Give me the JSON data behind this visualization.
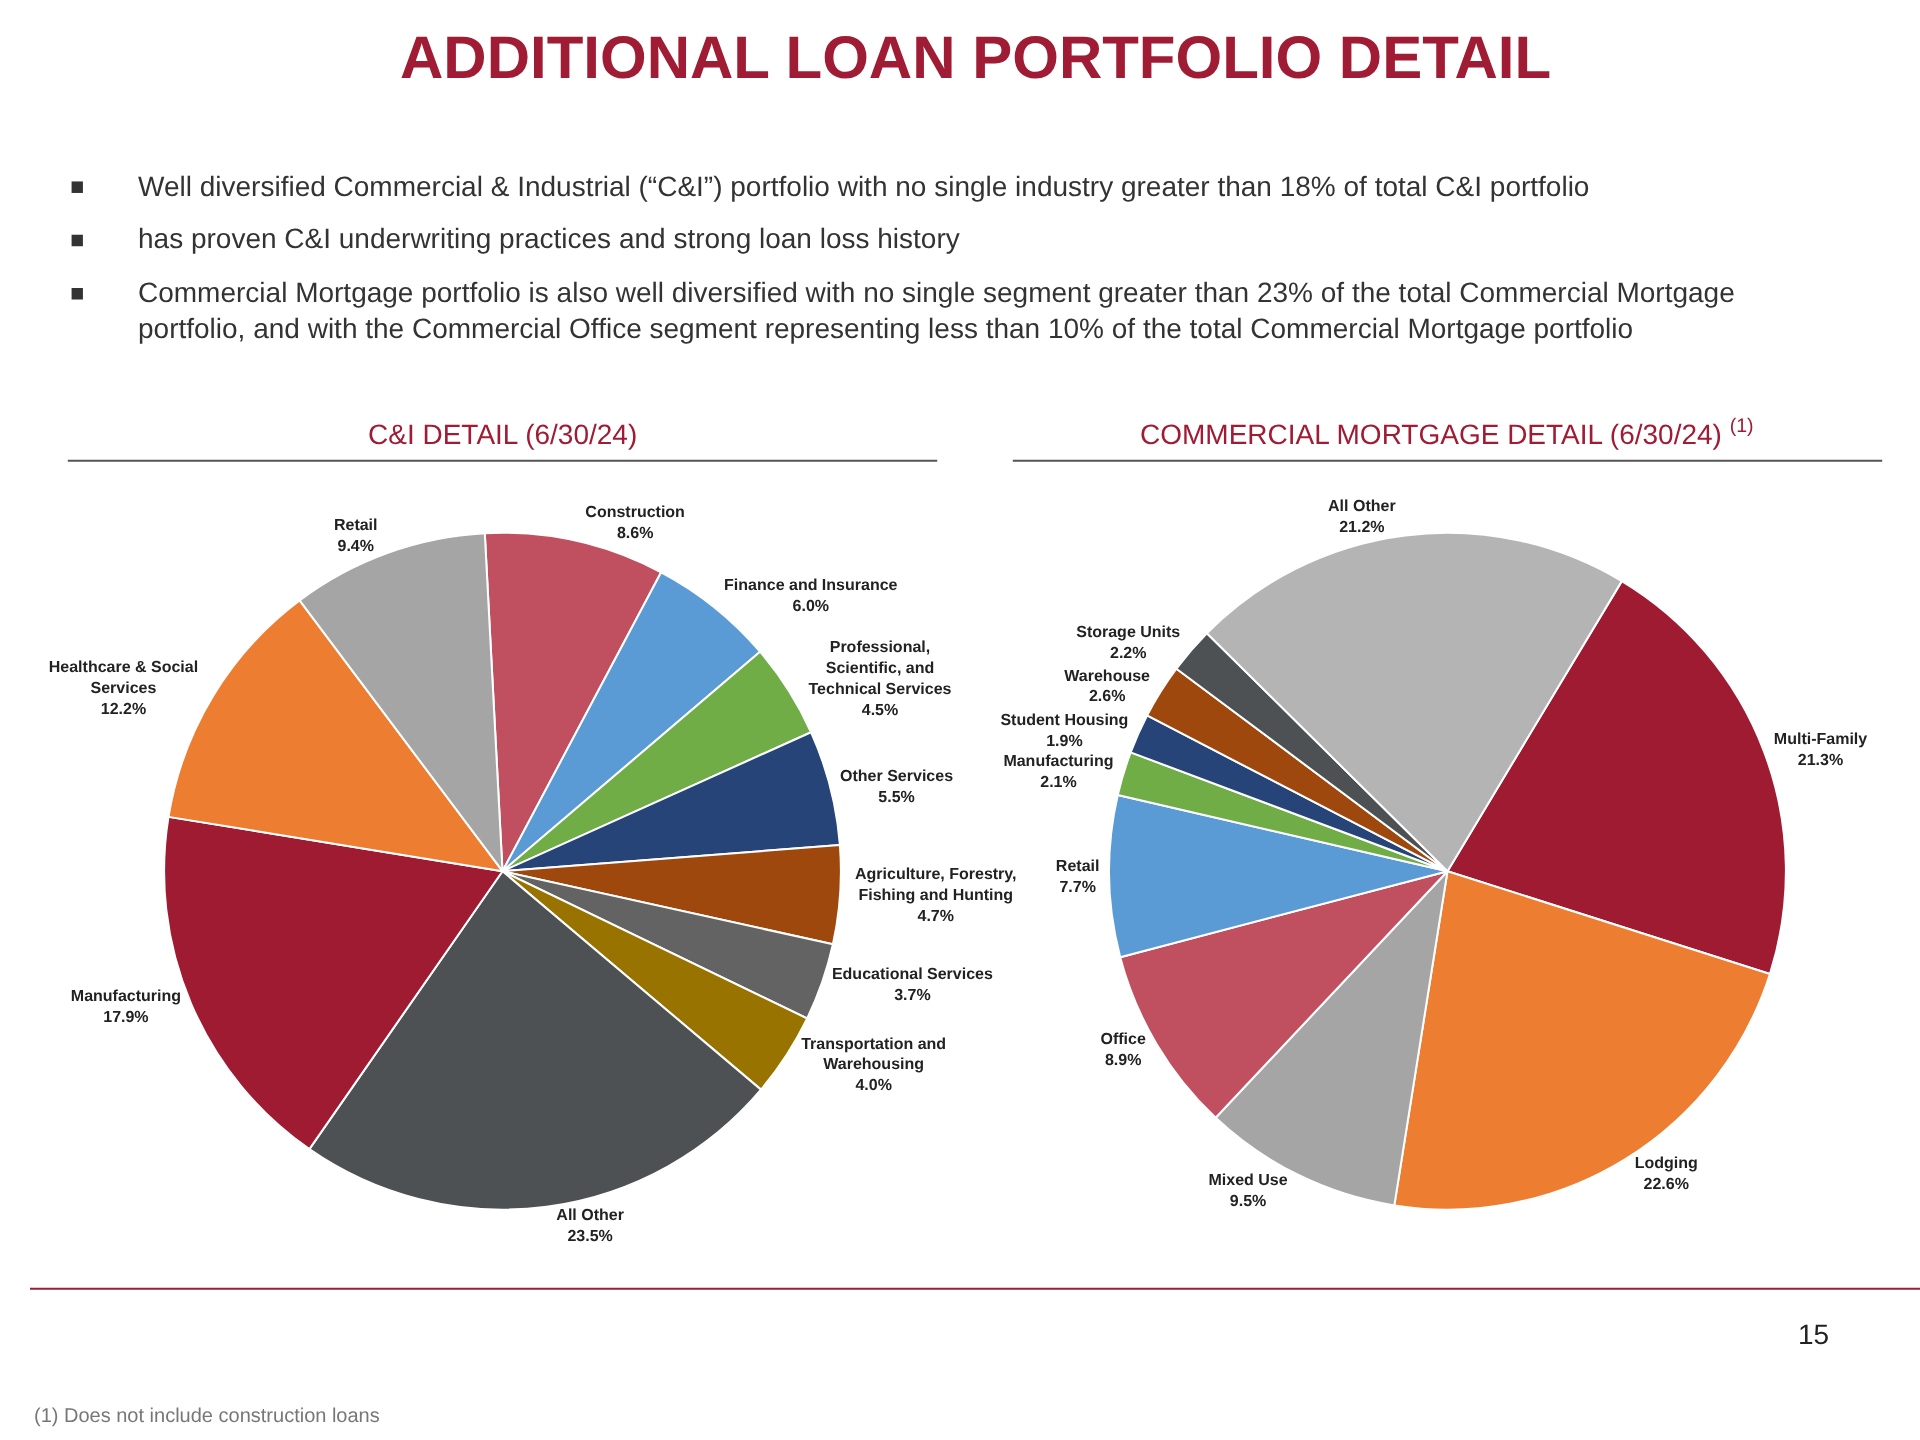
{
  "chart_data": [
    {
      "type": "other",
      "title": "ADDITIONAL LOAN PORTFOLIO DETAIL",
      "annotations": [
        "Well diversified Commercial & Industrial (“C&I”) portfolio with no single industry greater than 18% of total C&I portfolio",
        "has proven C&I underwriting practices and strong loan loss history",
        "Commercial Mortgage portfolio is also well diversified with no single segment greater than 23% of the total Commercial Mortgage portfolio, and with the Commercial Office segment representing less than 10% of the total Commercial Mortgage portfolio"
      ]
    },
    {
      "type": "pie",
      "title": "C&I DETAIL (6/30/24)",
      "categories": [
        "Construction",
        "Finance and Insurance",
        "Professional, Scientific, and Technical Services",
        "Other Services",
        "Agriculture, Forestry, Fishing and Hunting",
        "Educational Services",
        "Transportation and Warehousing",
        "All Other",
        "Manufacturing",
        "Healthcare & Social Services",
        "Retail"
      ],
      "values": [
        8.6,
        6.0,
        4.5,
        5.5,
        4.7,
        3.7,
        4.0,
        23.5,
        17.9,
        12.2,
        9.4
      ],
      "value_labels": [
        "8.6%",
        "6.0%",
        "4.5%",
        "5.5%",
        "4.7%",
        "3.7%",
        "4.0%",
        "23.5%",
        "17.9%",
        "12.2%",
        "9.4%"
      ],
      "colors": [
        "#c0505f",
        "#5b9bd5",
        "#70ad47",
        "#264478",
        "#9e480e",
        "#636363",
        "#997300",
        "#4d5154",
        "#9e1b32",
        "#ed7d31",
        "#a5a5a5"
      ]
    },
    {
      "type": "pie",
      "title": "COMMERCIAL MORTGAGE DETAIL (6/30/24) $^{(1)}$",
      "categories": [
        "Multi-Family",
        "Lodging",
        "Mixed Use",
        "Office",
        "Retail",
        "Manufacturing",
        "Student Housing",
        "Warehouse",
        "Storage Units",
        "All Other"
      ],
      "values": [
        21.3,
        22.6,
        9.5,
        8.9,
        7.7,
        2.1,
        1.9,
        2.6,
        2.2,
        21.2
      ],
      "value_labels": [
        "21.3%",
        "22.6%",
        "9.5%",
        "8.9%",
        "7.7%",
        "2.1%",
        "1.9%",
        "2.6%",
        "2.2%",
        "21.2%"
      ],
      "colors": [
        "#9e1b32",
        "#ed7d31",
        "#a5a5a5",
        "#c0505f",
        "#5b9bd5",
        "#70ad47",
        "#264478",
        "#9e480e",
        "#4d5154",
        "#b4b4b4"
      ],
      "annotations": [
        "(1) Does not include construction loans",
        "15"
      ]
    }
  ]
}
